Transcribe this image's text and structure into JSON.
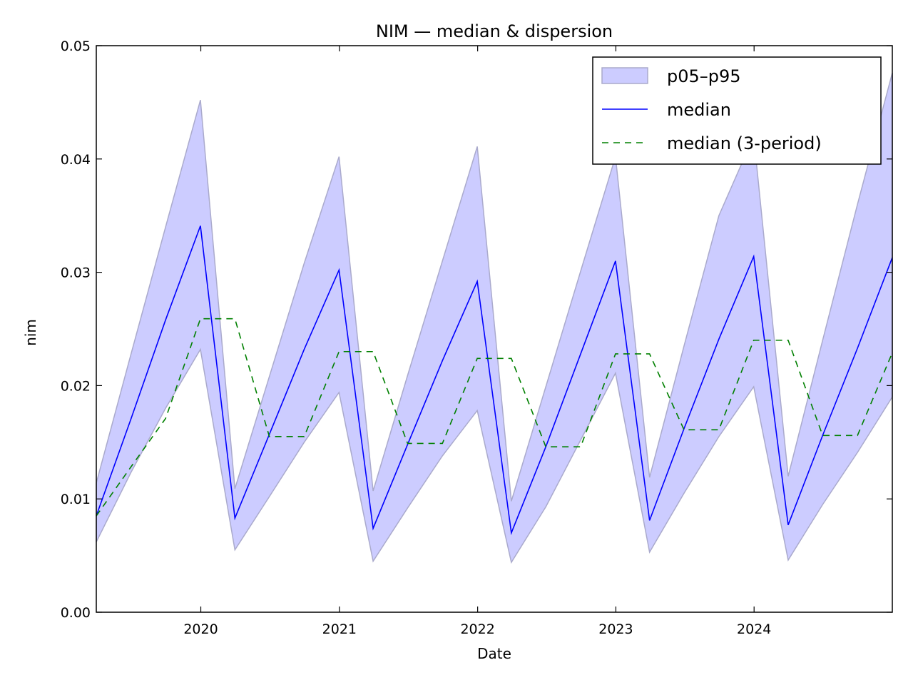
{
  "chart_data": {
    "type": "line",
    "title": "NIM — median & dispersion",
    "xlabel": "Date",
    "ylabel": "nim",
    "xlim": [
      "2019-03-31",
      "2024-12-31"
    ],
    "ylim": [
      0,
      0.05
    ],
    "x_ticks": [
      "2020",
      "2021",
      "2022",
      "2023",
      "2024"
    ],
    "y_ticks": [
      "0.00",
      "0.01",
      "0.02",
      "0.03",
      "0.04",
      "0.05"
    ],
    "grid": false,
    "legend_position": "top-right",
    "x": [
      "2019-03-31",
      "2019-06-30",
      "2019-09-30",
      "2019-12-31",
      "2020-03-31",
      "2020-06-30",
      "2020-09-30",
      "2020-12-31",
      "2021-03-31",
      "2021-06-30",
      "2021-09-30",
      "2021-12-31",
      "2022-03-31",
      "2022-06-30",
      "2022-09-30",
      "2022-12-31",
      "2023-03-31",
      "2023-06-30",
      "2023-09-30",
      "2023-12-31",
      "2024-03-31",
      "2024-06-30",
      "2024-09-30",
      "2024-12-31"
    ],
    "series": [
      {
        "name": "p05–p95",
        "kind": "band",
        "color": "#ccccff",
        "edge_color": "#aaaacc",
        "lower": [
          0.0062,
          0.0123,
          0.018,
          0.0232,
          0.0055,
          0.0102,
          0.015,
          0.0194,
          0.0045,
          0.0092,
          0.0138,
          0.0178,
          0.0044,
          0.0093,
          0.0152,
          0.0211,
          0.0053,
          0.0105,
          0.0155,
          0.0199,
          0.0046,
          0.0095,
          0.0141,
          0.019
        ],
        "upper": [
          0.0114,
          0.0227,
          0.034,
          0.0452,
          0.0109,
          0.0208,
          0.0308,
          0.0402,
          0.0107,
          0.0209,
          0.031,
          0.0411,
          0.0098,
          0.0199,
          0.0301,
          0.0402,
          0.0119,
          0.0235,
          0.035,
          0.042,
          0.012,
          0.024,
          0.036,
          0.0476
        ]
      },
      {
        "name": "median",
        "kind": "line",
        "color": "#0000ff",
        "values": [
          0.0085,
          0.017,
          0.0258,
          0.0341,
          0.0083,
          0.0157,
          0.0232,
          0.0302,
          0.0074,
          0.0148,
          0.0222,
          0.0292,
          0.007,
          0.0146,
          0.0228,
          0.031,
          0.0081,
          0.0162,
          0.0241,
          0.0314,
          0.0077,
          0.0156,
          0.0233,
          0.0313
        ]
      },
      {
        "name": "median (3-period)",
        "kind": "dashed-line",
        "color": "#008000",
        "values": [
          0.0085,
          0.0128,
          0.0171,
          0.0259,
          0.0259,
          0.0155,
          0.0155,
          0.023,
          0.023,
          0.0149,
          0.0149,
          0.0224,
          0.0224,
          0.0146,
          0.0146,
          0.0228,
          0.0228,
          0.0161,
          0.0161,
          0.024,
          0.024,
          0.0156,
          0.0156,
          0.0229
        ]
      }
    ]
  }
}
